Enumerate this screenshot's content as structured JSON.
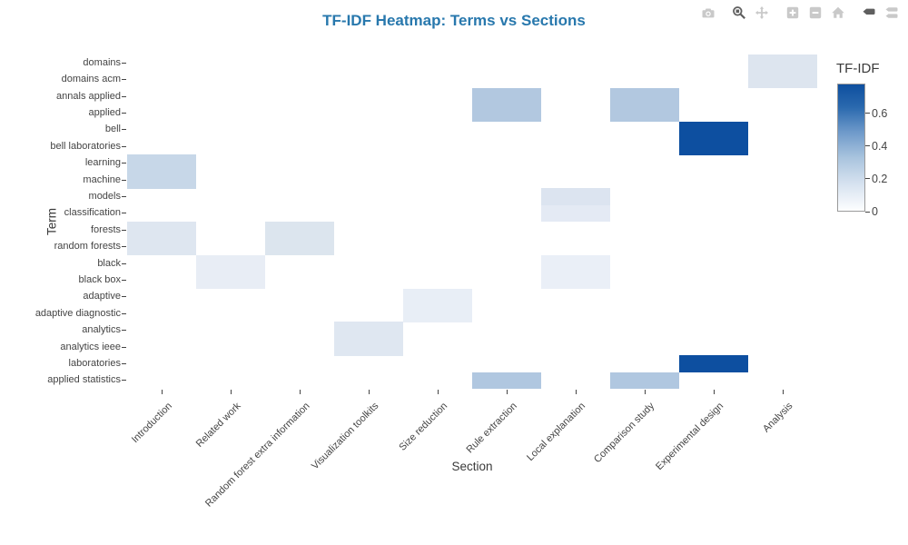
{
  "title": "TF-IDF Heatmap: Terms vs Sections",
  "colors": {
    "title": "#2878ad",
    "axis_text": "#444444",
    "modebar_inactive": "#c9c9c9",
    "modebar_active": "#5f5f5f",
    "heatmap_max": "#0d4fa0",
    "plot_background": "#ffffff"
  },
  "toolbar": {
    "icons": [
      {
        "name": "camera-icon",
        "label": "download-plot",
        "active": false
      },
      {
        "name": "zoom-icon",
        "label": "zoom",
        "active": true
      },
      {
        "name": "pan-icon",
        "label": "pan",
        "active": false
      },
      {
        "name": "zoom-in-icon",
        "label": "zoom-in",
        "active": false
      },
      {
        "name": "zoom-out-icon",
        "label": "zoom-out",
        "active": false
      },
      {
        "name": "home-icon",
        "label": "reset-axes",
        "active": false
      },
      {
        "name": "hover-closest-icon",
        "label": "show-closest-on-hover",
        "active": true
      },
      {
        "name": "hover-compare-icon",
        "label": "compare-on-hover",
        "active": false
      }
    ]
  },
  "chart_data": {
    "type": "heatmap",
    "title": "TF-IDF Heatmap: Terms vs Sections",
    "xlabel": "Section",
    "ylabel": "Term",
    "x_categories": [
      "Introduction",
      "Related work",
      "Random forest extra information",
      "Visualization toolkits",
      "Size reduction",
      "Rule extraction",
      "Local explanation",
      "Comparison study",
      "Experimental design",
      "Analysis"
    ],
    "y_categories": [
      "domains",
      "domains acm",
      "annals applied",
      "applied",
      "bell",
      "bell laboratories",
      "learning",
      "machine",
      "models",
      "classification",
      "forests",
      "random forests",
      "black",
      "black box",
      "adaptive",
      "adaptive diagnostic",
      "analytics",
      "analytics ieee",
      "laboratories",
      "applied statistics"
    ],
    "colorscale": "Blues",
    "zmin": 0,
    "zmax": 0.78,
    "grid": false,
    "legend_position": "right-colorbar",
    "colorbar": {
      "title": "TF-IDF",
      "tick_values": [
        0,
        0.2,
        0.4,
        0.6
      ],
      "tick_labels": [
        "0",
        "0.2",
        "0.4",
        "0.6"
      ],
      "gradient_stops": [
        {
          "offset": 0.0,
          "color": "#0e4f9f"
        },
        {
          "offset": 0.18,
          "color": "#2a69ae"
        },
        {
          "offset": 0.38,
          "color": "#6f9aca"
        },
        {
          "offset": 0.58,
          "color": "#a9c4de"
        },
        {
          "offset": 0.78,
          "color": "#d5e1ef"
        },
        {
          "offset": 1.0,
          "color": "#fdfeff"
        }
      ]
    },
    "values": [
      [
        0,
        0,
        0,
        0,
        0,
        0,
        0,
        0,
        0,
        0.14
      ],
      [
        0,
        0,
        0,
        0,
        0,
        0,
        0,
        0,
        0,
        0.14
      ],
      [
        0,
        0,
        0,
        0,
        0,
        0.3,
        0,
        0.3,
        0,
        0
      ],
      [
        0,
        0,
        0,
        0,
        0,
        0.3,
        0,
        0.3,
        0,
        0
      ],
      [
        0,
        0,
        0,
        0,
        0,
        0,
        0,
        0,
        0.78,
        0
      ],
      [
        0,
        0,
        0,
        0,
        0,
        0,
        0,
        0,
        0.78,
        0
      ],
      [
        0.23,
        0,
        0,
        0,
        0,
        0,
        0,
        0,
        0,
        0
      ],
      [
        0.23,
        0,
        0,
        0,
        0,
        0,
        0,
        0,
        0,
        0
      ],
      [
        0,
        0,
        0,
        0,
        0,
        0,
        0.14,
        0,
        0,
        0
      ],
      [
        0,
        0,
        0,
        0,
        0,
        0,
        0.11,
        0,
        0,
        0
      ],
      [
        0.13,
        0,
        0.14,
        0,
        0,
        0,
        0,
        0,
        0,
        0
      ],
      [
        0.13,
        0,
        0.14,
        0,
        0,
        0,
        0,
        0,
        0,
        0
      ],
      [
        0,
        0.09,
        0,
        0,
        0,
        0,
        0.08,
        0,
        0,
        0
      ],
      [
        0,
        0.09,
        0,
        0,
        0,
        0,
        0.08,
        0,
        0,
        0
      ],
      [
        0,
        0,
        0,
        0,
        0.09,
        0,
        0,
        0,
        0,
        0
      ],
      [
        0,
        0,
        0,
        0,
        0.09,
        0,
        0,
        0,
        0,
        0
      ],
      [
        0,
        0,
        0,
        0.13,
        0,
        0,
        0,
        0,
        0,
        0
      ],
      [
        0,
        0,
        0,
        0.13,
        0,
        0,
        0,
        0,
        0,
        0
      ],
      [
        0,
        0,
        0,
        0,
        0,
        0,
        0,
        0,
        0.78,
        0
      ],
      [
        0,
        0,
        0,
        0,
        0,
        0.31,
        0,
        0.31,
        0,
        0
      ]
    ],
    "cells": [
      {
        "row": 0,
        "col": 9,
        "term": "domains",
        "section": "Analysis",
        "value": 0.14,
        "color": "#dde5ef"
      },
      {
        "row": 1,
        "col": 9,
        "term": "domains acm",
        "section": "Analysis",
        "value": 0.14,
        "color": "#dde5ef"
      },
      {
        "row": 2,
        "col": 5,
        "term": "annals applied",
        "section": "Rule extraction",
        "value": 0.3,
        "color": "#b2c8e0"
      },
      {
        "row": 2,
        "col": 7,
        "term": "annals applied",
        "section": "Comparison study",
        "value": 0.3,
        "color": "#b2c8e0"
      },
      {
        "row": 3,
        "col": 5,
        "term": "applied",
        "section": "Rule extraction",
        "value": 0.3,
        "color": "#b2c8e0"
      },
      {
        "row": 3,
        "col": 7,
        "term": "applied",
        "section": "Comparison study",
        "value": 0.3,
        "color": "#b2c8e0"
      },
      {
        "row": 4,
        "col": 8,
        "term": "bell",
        "section": "Experimental design",
        "value": 0.78,
        "color": "#0d4fa0"
      },
      {
        "row": 5,
        "col": 8,
        "term": "bell laboratories",
        "section": "Experimental design",
        "value": 0.78,
        "color": "#0d4fa0"
      },
      {
        "row": 6,
        "col": 0,
        "term": "learning",
        "section": "Introduction",
        "value": 0.23,
        "color": "#c7d7e8"
      },
      {
        "row": 7,
        "col": 0,
        "term": "machine",
        "section": "Introduction",
        "value": 0.23,
        "color": "#c7d7e8"
      },
      {
        "row": 8,
        "col": 6,
        "term": "models",
        "section": "Local explanation",
        "value": 0.14,
        "color": "#dce4f0"
      },
      {
        "row": 9,
        "col": 6,
        "term": "classification",
        "section": "Local explanation",
        "value": 0.11,
        "color": "#e4eaf4"
      },
      {
        "row": 10,
        "col": 0,
        "term": "forests",
        "section": "Introduction",
        "value": 0.13,
        "color": "#dee6f0"
      },
      {
        "row": 10,
        "col": 2,
        "term": "forests",
        "section": "Random forest extra information",
        "value": 0.14,
        "color": "#dce5ee"
      },
      {
        "row": 11,
        "col": 0,
        "term": "random forests",
        "section": "Introduction",
        "value": 0.13,
        "color": "#dee6f0"
      },
      {
        "row": 11,
        "col": 2,
        "term": "random forests",
        "section": "Random forest extra information",
        "value": 0.14,
        "color": "#dce5ee"
      },
      {
        "row": 12,
        "col": 1,
        "term": "black",
        "section": "Related work",
        "value": 0.09,
        "color": "#e8edf5"
      },
      {
        "row": 12,
        "col": 6,
        "term": "black",
        "section": "Local explanation",
        "value": 0.08,
        "color": "#eaeff7"
      },
      {
        "row": 13,
        "col": 1,
        "term": "black box",
        "section": "Related work",
        "value": 0.09,
        "color": "#e8edf5"
      },
      {
        "row": 13,
        "col": 6,
        "term": "black box",
        "section": "Local explanation",
        "value": 0.08,
        "color": "#eaeff7"
      },
      {
        "row": 14,
        "col": 4,
        "term": "adaptive",
        "section": "Size reduction",
        "value": 0.09,
        "color": "#e8eef6"
      },
      {
        "row": 15,
        "col": 4,
        "term": "adaptive diagnostic",
        "section": "Size reduction",
        "value": 0.09,
        "color": "#e8eef6"
      },
      {
        "row": 16,
        "col": 3,
        "term": "analytics",
        "section": "Visualization toolkits",
        "value": 0.13,
        "color": "#dfe7f1"
      },
      {
        "row": 17,
        "col": 3,
        "term": "analytics ieee",
        "section": "Visualization toolkits",
        "value": 0.13,
        "color": "#dfe7f1"
      },
      {
        "row": 18,
        "col": 8,
        "term": "laboratories",
        "section": "Experimental design",
        "value": 0.78,
        "color": "#0d4fa0"
      },
      {
        "row": 19,
        "col": 5,
        "term": "applied statistics",
        "section": "Rule extraction",
        "value": 0.31,
        "color": "#b0c7e0"
      },
      {
        "row": 19,
        "col": 7,
        "term": "applied statistics",
        "section": "Comparison study",
        "value": 0.31,
        "color": "#b0c7e0"
      }
    ]
  }
}
